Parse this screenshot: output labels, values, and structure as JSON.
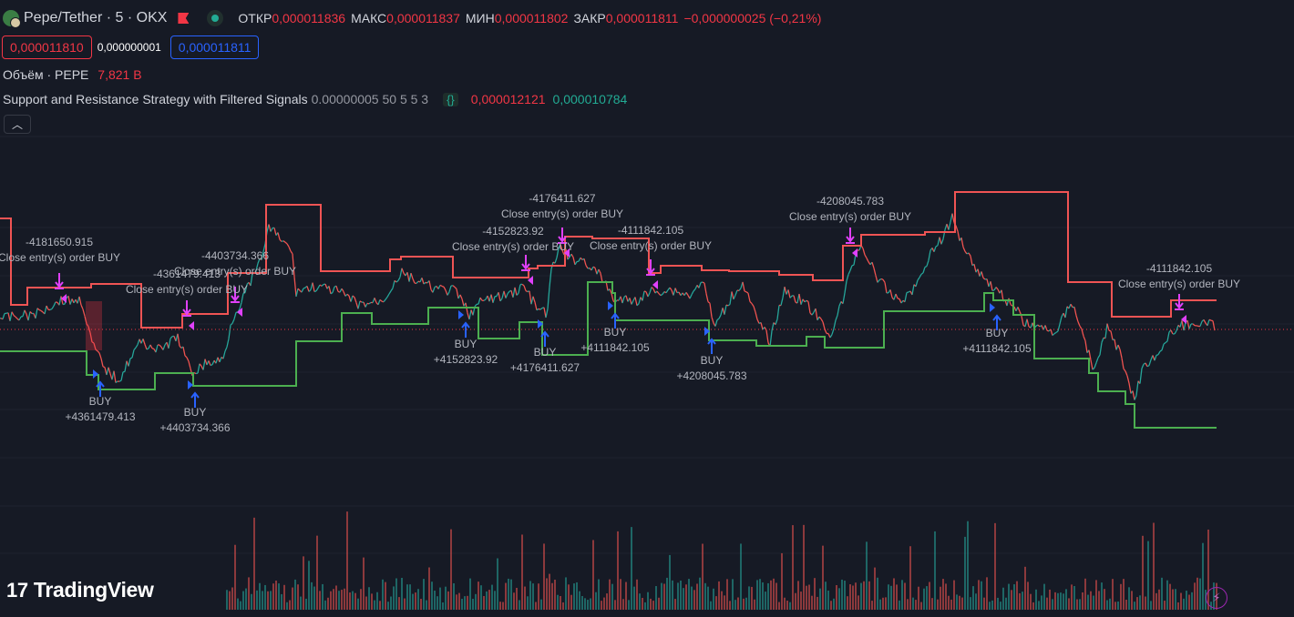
{
  "header": {
    "symbol_title": "Pepe/Tether · 5 · OKX",
    "open_label": "ОТКР",
    "open_value": "0,000011836",
    "high_label": "МАКС",
    "high_value": "0,000011837",
    "low_label": "МИН",
    "low_value": "0,000011802",
    "close_label": "ЗАКР",
    "close_value": "0,000011811",
    "change": "−0,000000025 (−0,21%)"
  },
  "trade": {
    "sell_price": "0,000011810",
    "spread": "0,000000001",
    "buy_price": "0,000011811"
  },
  "volume": {
    "label": "Объём · PEPE",
    "value": "7,821 B"
  },
  "indicator": {
    "name": "Support and Resistance Strategy with Filtered Signals",
    "params": "0.00000005 50 5 5 3",
    "upper": "0,000012121",
    "lower": "0,000010784"
  },
  "collapse_icon": "chevron-up-icon",
  "brand": {
    "mark": "17",
    "name": "TradingView"
  },
  "colors": {
    "resistance": "#f05454",
    "support": "#4caf50",
    "buy": "#2962ff",
    "exit": "#e040fb",
    "sell_text": "#f23645"
  },
  "trades": [
    {
      "side": "exit",
      "text1": "-4181650.915",
      "text2": "Close entry(s) order BUY"
    },
    {
      "side": "exit",
      "text1": "-4361479.413",
      "text2": "Close entry(s) order BUY"
    },
    {
      "side": "exit",
      "text1": "-4403734.366",
      "text2": "Close entry(s) order BUY"
    },
    {
      "side": "exit",
      "text1": "-4152823.92",
      "text2": "Close entry(s) order BUY"
    },
    {
      "side": "exit",
      "text1": "-4176411.627",
      "text2": "Close entry(s) order BUY"
    },
    {
      "side": "exit",
      "text1": "-4111842.105",
      "text2": "Close entry(s) order BUY"
    },
    {
      "side": "exit",
      "text1": "-4208045.783",
      "text2": "Close entry(s) order BUY"
    },
    {
      "side": "exit",
      "text1": "-4111842.105",
      "text2": "Close entry(s) order BUY"
    },
    {
      "side": "buy",
      "text1": "BUY",
      "text2": "+4361479.413"
    },
    {
      "side": "buy",
      "text1": "BUY",
      "text2": "+4403734.366"
    },
    {
      "side": "buy",
      "text1": "BUY",
      "text2": "+4152823.92"
    },
    {
      "side": "buy",
      "text1": "BUY",
      "text2": "+4176411.627"
    },
    {
      "side": "buy",
      "text1": "BUY",
      "text2": "+4111842.105"
    },
    {
      "side": "buy",
      "text1": "BUY",
      "text2": "+4208045.783"
    },
    {
      "side": "buy",
      "text1": "BUY",
      "text2": "+4111842.105"
    }
  ]
}
